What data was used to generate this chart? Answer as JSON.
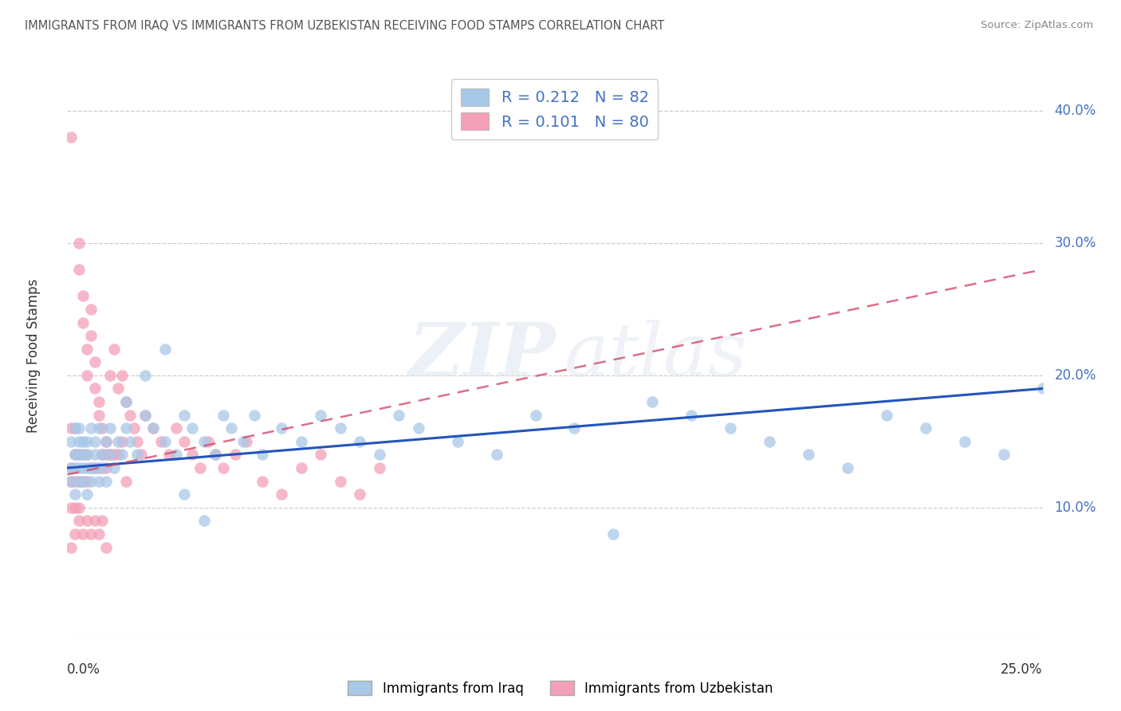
{
  "title": "IMMIGRANTS FROM IRAQ VS IMMIGRANTS FROM UZBEKISTAN RECEIVING FOOD STAMPS CORRELATION CHART",
  "source": "Source: ZipAtlas.com",
  "ylabel": "Receiving Food Stamps",
  "legend_iraq": "Immigrants from Iraq",
  "legend_uzbekistan": "Immigrants from Uzbekistan",
  "R_iraq": "0.212",
  "N_iraq": "82",
  "R_uzbekistan": "0.101",
  "N_uzbekistan": "80",
  "color_iraq": "#a8c8e8",
  "color_uzbekistan": "#f4a0b8",
  "color_line_iraq": "#2255bb",
  "color_line_uzbekistan": "#d04060",
  "watermark_zip": "ZIP",
  "watermark_atlas": "atlas",
  "background": "#ffffff",
  "xlim": [
    0,
    0.25
  ],
  "ylim": [
    0,
    0.43
  ],
  "ytick_vals": [
    0.1,
    0.2,
    0.3,
    0.4
  ],
  "ytick_labels": [
    "10.0%",
    "20.0%",
    "30.0%",
    "40.0%"
  ],
  "iraq_trend_x0": 0.0,
  "iraq_trend_y0": 0.13,
  "iraq_trend_x1": 0.25,
  "iraq_trend_y1": 0.19,
  "uzbek_trend_x0": 0.0,
  "uzbek_trend_y0": 0.125,
  "uzbek_trend_x1": 0.25,
  "uzbek_trend_y1": 0.28,
  "iraq_x": [
    0.001,
    0.001,
    0.001,
    0.002,
    0.002,
    0.002,
    0.002,
    0.003,
    0.003,
    0.003,
    0.003,
    0.003,
    0.004,
    0.004,
    0.004,
    0.004,
    0.005,
    0.005,
    0.005,
    0.005,
    0.006,
    0.006,
    0.006,
    0.007,
    0.007,
    0.007,
    0.008,
    0.008,
    0.009,
    0.009,
    0.01,
    0.01,
    0.011,
    0.011,
    0.012,
    0.013,
    0.014,
    0.015,
    0.016,
    0.018,
    0.02,
    0.022,
    0.025,
    0.028,
    0.03,
    0.032,
    0.035,
    0.038,
    0.04,
    0.042,
    0.045,
    0.048,
    0.05,
    0.055,
    0.06,
    0.065,
    0.07,
    0.075,
    0.08,
    0.085,
    0.09,
    0.1,
    0.11,
    0.12,
    0.13,
    0.14,
    0.15,
    0.16,
    0.17,
    0.18,
    0.19,
    0.2,
    0.21,
    0.22,
    0.23,
    0.24,
    0.25,
    0.015,
    0.02,
    0.025,
    0.03,
    0.035
  ],
  "iraq_y": [
    0.13,
    0.15,
    0.12,
    0.14,
    0.16,
    0.13,
    0.11,
    0.15,
    0.13,
    0.12,
    0.14,
    0.16,
    0.13,
    0.15,
    0.12,
    0.14,
    0.13,
    0.15,
    0.11,
    0.14,
    0.16,
    0.13,
    0.12,
    0.15,
    0.13,
    0.14,
    0.12,
    0.16,
    0.14,
    0.13,
    0.15,
    0.12,
    0.14,
    0.16,
    0.13,
    0.15,
    0.14,
    0.16,
    0.15,
    0.14,
    0.17,
    0.16,
    0.15,
    0.14,
    0.17,
    0.16,
    0.15,
    0.14,
    0.17,
    0.16,
    0.15,
    0.17,
    0.14,
    0.16,
    0.15,
    0.17,
    0.16,
    0.15,
    0.14,
    0.17,
    0.16,
    0.15,
    0.14,
    0.17,
    0.16,
    0.08,
    0.18,
    0.17,
    0.16,
    0.15,
    0.14,
    0.13,
    0.17,
    0.16,
    0.15,
    0.14,
    0.19,
    0.18,
    0.2,
    0.22,
    0.11,
    0.09
  ],
  "uzbek_x": [
    0.001,
    0.001,
    0.001,
    0.001,
    0.001,
    0.002,
    0.002,
    0.002,
    0.002,
    0.003,
    0.003,
    0.003,
    0.003,
    0.003,
    0.004,
    0.004,
    0.004,
    0.004,
    0.005,
    0.005,
    0.005,
    0.005,
    0.006,
    0.006,
    0.006,
    0.007,
    0.007,
    0.007,
    0.008,
    0.008,
    0.008,
    0.009,
    0.009,
    0.01,
    0.01,
    0.01,
    0.011,
    0.011,
    0.012,
    0.012,
    0.013,
    0.013,
    0.014,
    0.014,
    0.015,
    0.015,
    0.016,
    0.017,
    0.018,
    0.019,
    0.02,
    0.022,
    0.024,
    0.026,
    0.028,
    0.03,
    0.032,
    0.034,
    0.036,
    0.038,
    0.04,
    0.043,
    0.046,
    0.05,
    0.055,
    0.06,
    0.065,
    0.07,
    0.075,
    0.08,
    0.001,
    0.002,
    0.003,
    0.004,
    0.005,
    0.006,
    0.007,
    0.008,
    0.009,
    0.01
  ],
  "uzbek_y": [
    0.38,
    0.13,
    0.16,
    0.1,
    0.12,
    0.14,
    0.16,
    0.12,
    0.1,
    0.3,
    0.28,
    0.14,
    0.12,
    0.1,
    0.26,
    0.24,
    0.14,
    0.12,
    0.22,
    0.2,
    0.14,
    0.12,
    0.25,
    0.23,
    0.13,
    0.21,
    0.19,
    0.13,
    0.18,
    0.17,
    0.13,
    0.16,
    0.14,
    0.15,
    0.14,
    0.13,
    0.2,
    0.14,
    0.22,
    0.14,
    0.19,
    0.14,
    0.2,
    0.15,
    0.18,
    0.12,
    0.17,
    0.16,
    0.15,
    0.14,
    0.17,
    0.16,
    0.15,
    0.14,
    0.16,
    0.15,
    0.14,
    0.13,
    0.15,
    0.14,
    0.13,
    0.14,
    0.15,
    0.12,
    0.11,
    0.13,
    0.14,
    0.12,
    0.11,
    0.13,
    0.07,
    0.08,
    0.09,
    0.08,
    0.09,
    0.08,
    0.09,
    0.08,
    0.09,
    0.07
  ]
}
